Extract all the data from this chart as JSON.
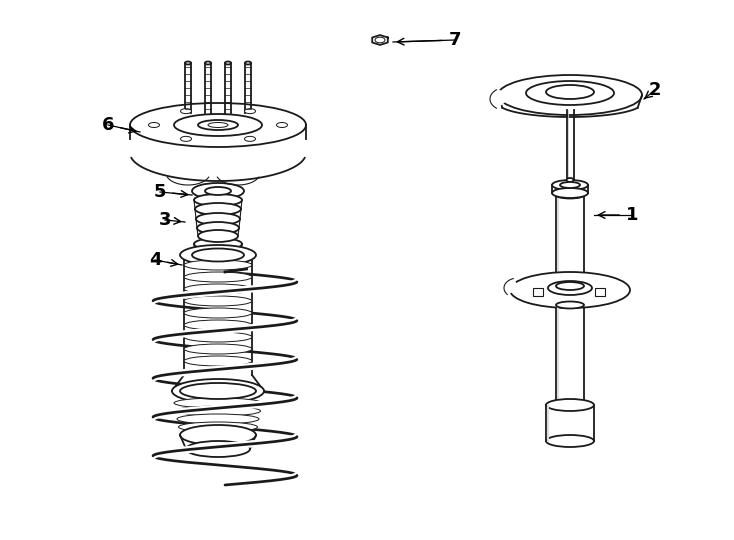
{
  "background_color": "#ffffff",
  "line_color": "#1a1a1a",
  "label_color": "#000000",
  "fig_width": 7.34,
  "fig_height": 5.4,
  "dpi": 100
}
